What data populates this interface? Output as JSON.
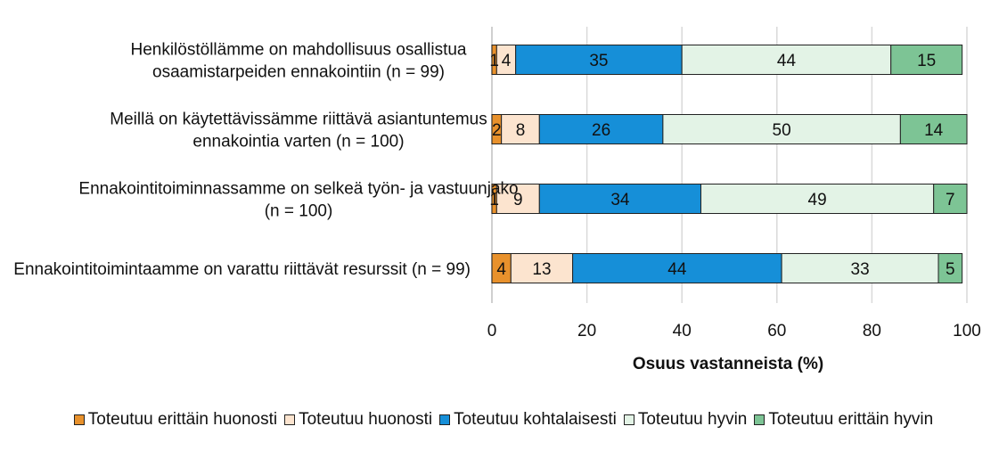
{
  "chart_data": {
    "type": "bar",
    "orientation": "horizontal",
    "stacked": true,
    "categories": [
      [
        "Henkilöstöllämme on mahdollisuus osallistua",
        "osaamistarpeiden ennakointiin (n = 99)"
      ],
      [
        "Meillä on käytettävissämme riittävä asiantuntemus",
        "ennakointia varten (n = 100)"
      ],
      [
        "Ennakointitoiminnassamme on selkeä työn- ja vastuunjako",
        "(n = 100)"
      ],
      [
        "Ennakointitoimintaamme on varattu riittävät resurssit (n = 99)"
      ]
    ],
    "series": [
      {
        "name": "Toteutuu erittäin huonosti",
        "color": "#E8912C",
        "values": [
          1,
          2,
          1,
          4
        ]
      },
      {
        "name": "Toteutuu huonosti",
        "color": "#FCE4CF",
        "values": [
          4,
          8,
          9,
          13
        ]
      },
      {
        "name": "Toteutuu kohtalaisesti",
        "color": "#168FD8",
        "values": [
          35,
          26,
          34,
          44
        ]
      },
      {
        "name": "Toteutuu hyvin",
        "color": "#E3F3E6",
        "values": [
          44,
          50,
          49,
          33
        ]
      },
      {
        "name": "Toteutuu erittäin hyvin",
        "color": "#7DC495",
        "values": [
          15,
          14,
          7,
          5
        ]
      }
    ],
    "xlabel": "Osuus vastanneista (%)",
    "ylabel": "",
    "xlim": [
      0,
      100
    ],
    "xticks": [
      0,
      20,
      40,
      60,
      80,
      100
    ],
    "grid": true,
    "legend_position": "bottom"
  }
}
